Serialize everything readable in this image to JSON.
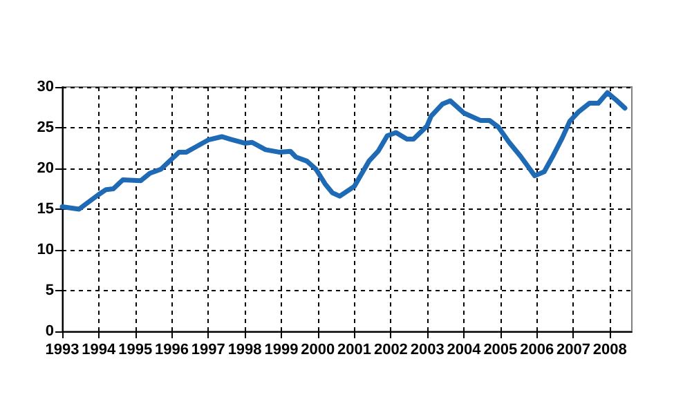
{
  "chart_data": {
    "type": "line",
    "xlim": [
      1993,
      2008.6
    ],
    "xticks": [
      1993,
      1994,
      1995,
      1996,
      1997,
      1998,
      1999,
      2000,
      2001,
      2002,
      2003,
      2004,
      2005,
      2006,
      2007,
      2008
    ],
    "ylim": [
      0,
      30
    ],
    "yticks": [
      0,
      5,
      10,
      15,
      20,
      25,
      30
    ],
    "grid": true,
    "line_style": "solid",
    "marker": "none",
    "series": [
      {
        "color": "#1f6ab4",
        "x": [
          1993,
          1993.46,
          1993.7,
          1994,
          1994.2,
          1994.4,
          1994.66,
          1995.15,
          1995.4,
          1995.7,
          1996.2,
          1996.4,
          1996.6,
          1997,
          1997.37,
          1997.6,
          1998,
          1998.2,
          1998.57,
          1998.94,
          1999.25,
          1999.4,
          1999.7,
          1999.95,
          2000.2,
          2000.4,
          2000.6,
          2001,
          2001.4,
          2001.65,
          2001.9,
          2002.14,
          2002.44,
          2002.62,
          2002.99,
          2003.1,
          2003.41,
          2003.63,
          2004,
          2004.45,
          2004.7,
          2004.94,
          2005.24,
          2005.55,
          2005.73,
          2005.94,
          2006.2,
          2006.46,
          2006.7,
          2006.9,
          2007.13,
          2007.44,
          2007.68,
          2007.93,
          2008.17,
          2008.41
        ],
        "values": [
          15.3,
          15,
          15.8,
          16.8,
          17.4,
          17.5,
          18.6,
          18.5,
          19.4,
          19.9,
          22,
          22,
          22.5,
          23.5,
          23.9,
          23.6,
          23.1,
          23.2,
          22.3,
          22,
          22.1,
          21.4,
          20.9,
          19.9,
          18.1,
          17,
          16.6,
          17.8,
          20.9,
          22.1,
          24,
          24.4,
          23.6,
          23.6,
          25.2,
          26.4,
          27.9,
          28.3,
          26.8,
          25.9,
          25.9,
          25.1,
          23.2,
          21.5,
          20.4,
          19.1,
          19.6,
          21.7,
          23.8,
          25.8,
          26.9,
          28,
          28,
          29.3,
          28.4,
          27.4
        ]
      }
    ]
  }
}
